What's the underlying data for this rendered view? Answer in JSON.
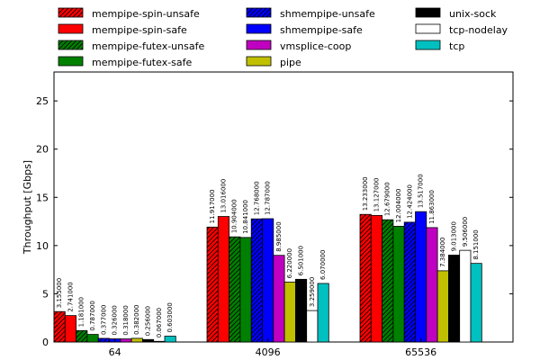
{
  "chart_data": {
    "type": "bar",
    "title": "",
    "xlabel": "",
    "ylabel": "Throughput [Gbps]",
    "ylim": [
      0,
      28
    ],
    "yticks": [
      0,
      5,
      10,
      15,
      20,
      25
    ],
    "grid": false,
    "legend_position": "top (above plot, 3 columns)",
    "categories": [
      "64",
      "4096",
      "65536"
    ],
    "series": [
      {
        "name": "mempipe-spin-unsafe",
        "color": "#ff0000",
        "hatch": "diagonal",
        "values": [
          3.155,
          11.917,
          13.233
        ],
        "labels": [
          "3.155000",
          "11.917000",
          "13.233000"
        ]
      },
      {
        "name": "mempipe-spin-safe",
        "color": "#ff0000",
        "hatch": "none",
        "values": [
          2.741,
          13.016,
          13.127
        ],
        "labels": [
          "2.741000",
          "13.016000",
          "13.127000"
        ]
      },
      {
        "name": "mempipe-futex-unsafe",
        "color": "#008000",
        "hatch": "diagonal",
        "values": [
          1.181,
          10.904,
          12.679
        ],
        "labels": [
          "1.181000",
          "10.904000",
          "12.679000"
        ]
      },
      {
        "name": "mempipe-futex-safe",
        "color": "#008000",
        "hatch": "none",
        "values": [
          0.787,
          10.841,
          12.004
        ],
        "labels": [
          "0.787000",
          "10.841000",
          "12.004000"
        ]
      },
      {
        "name": "shmempipe-unsafe",
        "color": "#0000ff",
        "hatch": "diagonal",
        "values": [
          0.377,
          12.768,
          12.424
        ],
        "labels": [
          "0.377000",
          "12.768000",
          "12.424000"
        ]
      },
      {
        "name": "shmempipe-safe",
        "color": "#0000ff",
        "hatch": "none",
        "values": [
          0.326,
          12.787,
          13.517
        ],
        "labels": [
          "0.326000",
          "12.787000",
          "13.517000"
        ]
      },
      {
        "name": "vmsplice-coop",
        "color": "#c000c0",
        "hatch": "none",
        "values": [
          0.318,
          8.985,
          11.863
        ],
        "labels": [
          "0.318000",
          "8.985000",
          "11.863000"
        ]
      },
      {
        "name": "pipe",
        "color": "#c0c000",
        "hatch": "none",
        "values": [
          0.382,
          6.22,
          7.384
        ],
        "labels": [
          "0.382000",
          "6.220000",
          "7.384000"
        ]
      },
      {
        "name": "unix-sock",
        "color": "#000000",
        "hatch": "none",
        "values": [
          0.256,
          6.501,
          9.013
        ],
        "labels": [
          "0.256000",
          "6.501000",
          "9.013000"
        ]
      },
      {
        "name": "tcp-nodelay",
        "color": "#ffffff",
        "hatch": "none",
        "values": [
          0.067,
          3.259,
          9.506
        ],
        "labels": [
          "0.067000",
          "3.259000",
          "9.506000"
        ]
      },
      {
        "name": "tcp",
        "color": "#00c0c0",
        "hatch": "none",
        "values": [
          0.603,
          6.07,
          8.151
        ],
        "labels": [
          "0.603000",
          "6.070000",
          "8.151000"
        ]
      }
    ]
  }
}
